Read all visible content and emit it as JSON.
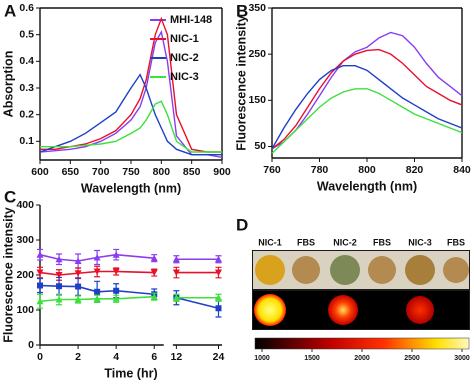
{
  "chart_data": [
    {
      "type": "line",
      "label": "A",
      "xlabel": "Wavelength (nm)",
      "ylabel": "Absorption",
      "x": [
        600,
        625,
        650,
        675,
        700,
        725,
        750,
        765,
        775,
        790,
        800,
        810,
        825,
        850,
        875,
        900
      ],
      "xlim": [
        600,
        900
      ],
      "xticks": [
        600,
        650,
        700,
        750,
        800,
        850,
        900
      ],
      "ylim": [
        0.03,
        0.6
      ],
      "yticks": [
        0.1,
        0.2,
        0.3,
        0.4,
        0.5,
        0.6
      ],
      "legend": "upper right",
      "series": [
        {
          "name": "MHI-148",
          "color": "#8a3df0",
          "values": [
            0.06,
            0.065,
            0.07,
            0.08,
            0.1,
            0.13,
            0.18,
            0.23,
            0.3,
            0.47,
            0.51,
            0.4,
            0.12,
            0.05,
            0.05,
            0.04
          ]
        },
        {
          "name": "NIC-1",
          "color": "#e8102a",
          "values": [
            0.07,
            0.07,
            0.08,
            0.09,
            0.11,
            0.14,
            0.2,
            0.26,
            0.33,
            0.5,
            0.56,
            0.5,
            0.2,
            0.07,
            0.06,
            0.06
          ]
        },
        {
          "name": "NIC-2",
          "color": "#1f3fc8",
          "values": [
            0.06,
            0.08,
            0.1,
            0.13,
            0.17,
            0.21,
            0.3,
            0.35,
            0.3,
            0.2,
            0.15,
            0.1,
            0.07,
            0.05,
            0.05,
            0.05
          ]
        },
        {
          "name": "NIC-3",
          "color": "#3de03d",
          "values": [
            0.08,
            0.08,
            0.08,
            0.085,
            0.09,
            0.1,
            0.13,
            0.15,
            0.18,
            0.24,
            0.25,
            0.2,
            0.1,
            0.06,
            0.06,
            0.06
          ]
        }
      ]
    },
    {
      "type": "line",
      "label": "B",
      "xlabel": "Wavelength (nm)",
      "ylabel": "Fluorescence intensity",
      "x": [
        760,
        765,
        770,
        775,
        780,
        785,
        790,
        795,
        800,
        805,
        810,
        815,
        820,
        825,
        830,
        835,
        840
      ],
      "xlim": [
        760,
        840
      ],
      "xticks": [
        760,
        780,
        800,
        820,
        840
      ],
      "ylim": [
        25,
        350
      ],
      "yticks": [
        50,
        150,
        250,
        350
      ],
      "series": [
        {
          "color": "#8a3df0",
          "values": [
            45,
            60,
            85,
            120,
            160,
            200,
            235,
            255,
            265,
            285,
            297,
            290,
            265,
            230,
            200,
            180,
            160
          ]
        },
        {
          "color": "#e8102a",
          "values": [
            45,
            65,
            95,
            135,
            175,
            210,
            235,
            250,
            258,
            260,
            250,
            230,
            205,
            180,
            165,
            150,
            140
          ]
        },
        {
          "color": "#1f3fc8",
          "values": [
            45,
            90,
            130,
            165,
            195,
            215,
            225,
            225,
            215,
            195,
            175,
            155,
            140,
            125,
            110,
            100,
            90
          ]
        },
        {
          "color": "#3de03d",
          "values": [
            35,
            60,
            85,
            110,
            135,
            155,
            168,
            175,
            175,
            165,
            150,
            135,
            120,
            110,
            100,
            90,
            80
          ]
        }
      ]
    },
    {
      "type": "errorline",
      "label": "C",
      "xlabel": "Time (hr)",
      "ylabel": "Fluorescence intensity",
      "x": [
        0,
        1,
        2,
        3,
        4,
        6,
        12,
        24
      ],
      "xlim": [
        0,
        25
      ],
      "xbreak": [
        6.5,
        11
      ],
      "xticks": [
        0,
        2,
        4,
        6,
        12,
        24
      ],
      "ylim": [
        0,
        400
      ],
      "yticks": [
        0,
        100,
        200,
        300,
        400
      ],
      "series": [
        {
          "color": "#8a3df0",
          "values": [
            258,
            245,
            240,
            250,
            258,
            248,
            245,
            245
          ],
          "errors": [
            15,
            15,
            20,
            20,
            15,
            10,
            10,
            10
          ]
        },
        {
          "color": "#e8102a",
          "values": [
            207,
            200,
            205,
            210,
            210,
            207,
            207,
            207
          ],
          "errors": [
            15,
            15,
            15,
            15,
            10,
            10,
            15,
            15
          ]
        },
        {
          "color": "#1f3fc8",
          "values": [
            170,
            168,
            167,
            152,
            155,
            145,
            135,
            105
          ],
          "errors": [
            20,
            25,
            25,
            30,
            20,
            15,
            20,
            25
          ]
        },
        {
          "color": "#3de03d",
          "values": [
            125,
            130,
            130,
            132,
            132,
            138,
            135,
            135
          ],
          "errors": [
            20,
            15,
            10,
            10,
            10,
            10,
            10,
            10
          ]
        }
      ]
    },
    {
      "type": "image",
      "label": "D",
      "labels": [
        "NIC-1",
        "FBS",
        "NIC-2",
        "FBS",
        "NIC-3",
        "FBS"
      ],
      "colorbar": {
        "lim": [
          950,
          3050
        ],
        "ticks": [
          1000,
          1500,
          2000,
          2500,
          3000
        ]
      }
    }
  ]
}
